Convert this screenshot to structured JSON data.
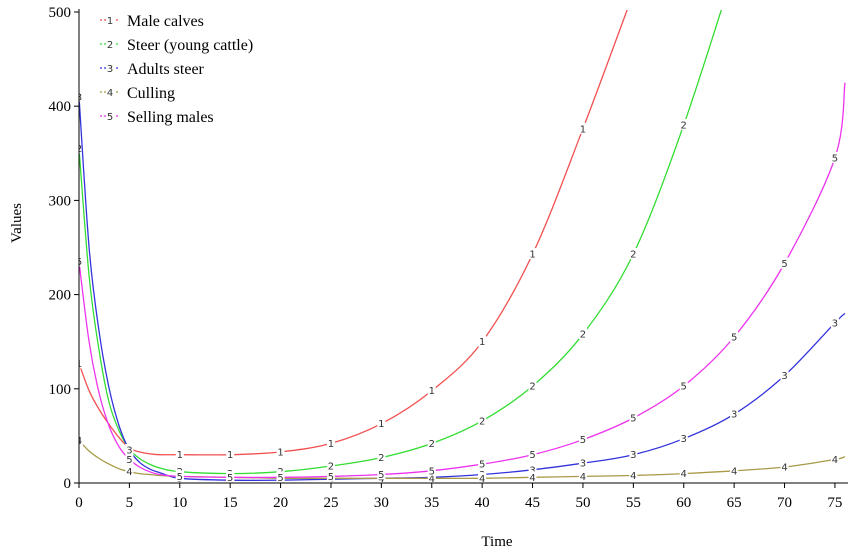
{
  "chart_data": {
    "type": "line",
    "xlabel": "Time",
    "ylabel": "Values",
    "xlim": [
      0,
      76
    ],
    "ylim": [
      0,
      500
    ],
    "xticks": [
      0,
      5,
      10,
      15,
      20,
      25,
      30,
      35,
      40,
      45,
      50,
      55,
      60,
      65,
      70,
      75
    ],
    "yticks": [
      0,
      100,
      200,
      300,
      400,
      500
    ],
    "legend_position": "top-left",
    "series": [
      {
        "name": "Male calves",
        "marker": "1",
        "color": "#f25050",
        "x": [
          0,
          1,
          2,
          3,
          4,
          5,
          6,
          7,
          8,
          10,
          15,
          20,
          25,
          30,
          35,
          40,
          45,
          50,
          55
        ],
        "y": [
          127,
          98,
          78,
          62,
          48,
          37,
          33,
          31,
          30,
          30,
          30,
          33,
          42,
          63,
          98,
          150,
          243,
          376,
          520
        ]
      },
      {
        "name": "Steer (young cattle)",
        "marker": "2",
        "color": "#33dd33",
        "x": [
          0,
          1,
          2,
          3,
          4,
          5,
          6,
          7,
          8,
          10,
          15,
          20,
          25,
          30,
          35,
          40,
          45,
          50,
          55,
          60,
          65
        ],
        "y": [
          355,
          220,
          140,
          85,
          55,
          36,
          26,
          20,
          16,
          12,
          10,
          12,
          18,
          27,
          42,
          66,
          103,
          158,
          243,
          380,
          545
        ]
      },
      {
        "name": "Adults steer",
        "marker": "3",
        "color": "#3333dd",
        "x": [
          0,
          1,
          2,
          3,
          4,
          5,
          6,
          7,
          8,
          10,
          15,
          20,
          25,
          30,
          35,
          40,
          45,
          50,
          55,
          60,
          65,
          70,
          75,
          76
        ],
        "y": [
          410,
          250,
          160,
          100,
          60,
          35,
          22,
          15,
          11,
          5,
          3,
          3,
          4,
          5,
          6,
          9,
          14,
          21,
          30,
          47,
          73,
          114,
          170,
          180
        ]
      },
      {
        "name": "Culling",
        "marker": "4",
        "color": "#a89a48",
        "x": [
          0,
          1,
          2,
          3,
          4,
          5,
          6,
          7,
          8,
          10,
          15,
          20,
          25,
          30,
          35,
          40,
          45,
          50,
          55,
          60,
          65,
          70,
          75,
          76
        ],
        "y": [
          45,
          34,
          26,
          20,
          15,
          12,
          10,
          9,
          8,
          7,
          6,
          5,
          5,
          5,
          5,
          5,
          6,
          7,
          8,
          10,
          13,
          17,
          25,
          28
        ]
      },
      {
        "name": "Selling males",
        "marker": "5",
        "color": "#ee33ee",
        "x": [
          0,
          1,
          2,
          3,
          4,
          5,
          6,
          7,
          8,
          10,
          15,
          20,
          25,
          30,
          35,
          40,
          45,
          50,
          55,
          60,
          65,
          70,
          75,
          76
        ],
        "y": [
          235,
          150,
          95,
          60,
          38,
          25,
          17,
          12,
          9,
          7,
          6,
          6,
          7,
          9,
          13,
          20,
          30,
          46,
          69,
          103,
          155,
          233,
          345,
          425
        ]
      }
    ]
  }
}
